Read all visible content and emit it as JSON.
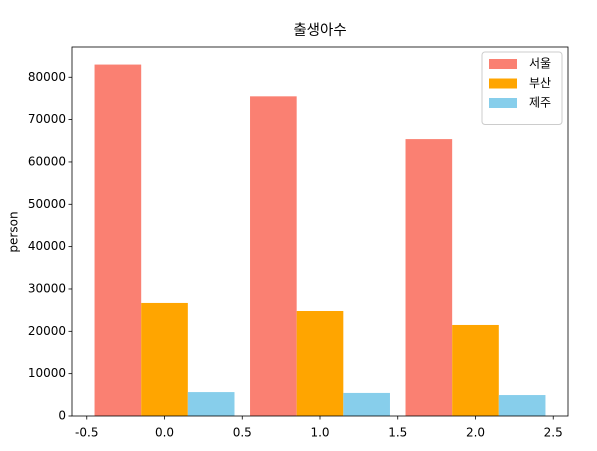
{
  "chart_data": {
    "type": "bar",
    "title": "출생아수",
    "y_label": "person",
    "series": [
      {
        "name": "서울",
        "color": "#fa8072",
        "x": [
          -0.3,
          0.7,
          1.7
        ],
        "values": [
          83000,
          75500,
          65400
        ]
      },
      {
        "name": "부산",
        "color": "#ffa500",
        "x": [
          0,
          1,
          2
        ],
        "values": [
          26700,
          24800,
          21500
        ]
      },
      {
        "name": "제주",
        "color": "#87ceeb",
        "x": [
          0.3,
          1.3,
          2.3
        ],
        "values": [
          5650,
          5450,
          4950
        ]
      }
    ],
    "xlim": [
      -0.595,
      2.595
    ],
    "xticks": [
      -0.5,
      {
        "value": 0,
        "label": "0.0"
      },
      0.5,
      {
        "value": 1,
        "label": "1.0"
      },
      1.5,
      {
        "value": 2,
        "label": "2.0"
      },
      2.5
    ],
    "ylim": [
      0,
      87150
    ],
    "yticks": [
      0,
      10000,
      20000,
      30000,
      40000,
      50000,
      60000,
      70000,
      80000
    ],
    "legend": "upper right"
  }
}
